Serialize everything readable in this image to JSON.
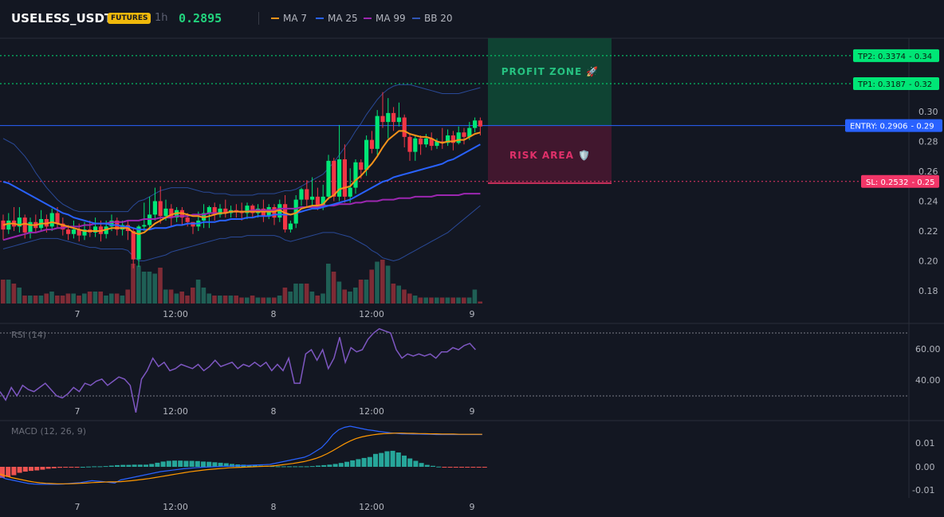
{
  "header": {
    "symbol": "USELESS_USDT",
    "badge": "FUTURES",
    "interval": "1h",
    "price": "0.2895",
    "legend": [
      {
        "name": "MA 7",
        "color": "#f7931a"
      },
      {
        "name": "MA 25",
        "color": "#2962ff"
      },
      {
        "name": "MA 99",
        "color": "#9c27b0"
      },
      {
        "name": "BB 20",
        "color": "#3056b5"
      }
    ]
  },
  "colors": {
    "up": "#00e676",
    "down": "#f23645",
    "vol_up": "#1f5f55",
    "vol_down": "#7e2b35",
    "rsi": "#7e57c2",
    "macd": "#2962ff",
    "signal": "#ff9800"
  },
  "levels": {
    "tp2": {
      "label": "TP2: 0.3374",
      "suffix": "- 0.34",
      "value": 0.3374,
      "color": "#00e676"
    },
    "tp1": {
      "label": "TP1: 0.3187",
      "suffix": "- 0.32",
      "value": 0.3187,
      "color": "#00e676"
    },
    "entry": {
      "label": "ENTRY: 0.2906",
      "suffix": "- 0.29",
      "value": 0.2906,
      "color": "#2962ff"
    },
    "sl": {
      "label": "SL: 0.2532",
      "suffix": "- 0.25",
      "value": 0.2532,
      "color": "#f23668"
    }
  },
  "zones": {
    "profit": "PROFIT ZONE 🚀",
    "risk": "RISK AREA 🛡️"
  },
  "x_labels": [
    "7",
    "12:00",
    "8",
    "12:00",
    "9"
  ],
  "price_ticks": [
    "0.30",
    "0.28",
    "0.26",
    "0.24",
    "0.22",
    "0.20",
    "0.18"
  ],
  "rsi": {
    "label": "RSI (14)",
    "ticks": [
      "60.00",
      "40.00"
    ]
  },
  "macd": {
    "label": "MACD (12, 26, 9)",
    "ticks": [
      "0.01",
      "0.00",
      "-0.01"
    ]
  },
  "chart_data": {
    "type": "candlestick",
    "ylim": [
      0.17,
      0.35
    ],
    "candles": [
      [
        0.227,
        0.221,
        0.231,
        0.214
      ],
      [
        0.221,
        0.227,
        0.232,
        0.218
      ],
      [
        0.227,
        0.223,
        0.236,
        0.22
      ],
      [
        0.223,
        0.229,
        0.236,
        0.219
      ],
      [
        0.229,
        0.219,
        0.231,
        0.215
      ],
      [
        0.219,
        0.226,
        0.229,
        0.215
      ],
      [
        0.226,
        0.222,
        0.231,
        0.219
      ],
      [
        0.222,
        0.228,
        0.234,
        0.22
      ],
      [
        0.228,
        0.223,
        0.231,
        0.219
      ],
      [
        0.223,
        0.232,
        0.235,
        0.22
      ],
      [
        0.232,
        0.225,
        0.236,
        0.222
      ],
      [
        0.225,
        0.221,
        0.229,
        0.217
      ],
      [
        0.221,
        0.218,
        0.224,
        0.214
      ],
      [
        0.218,
        0.221,
        0.227,
        0.215
      ],
      [
        0.221,
        0.217,
        0.225,
        0.213
      ],
      [
        0.217,
        0.221,
        0.226,
        0.214
      ],
      [
        0.221,
        0.219,
        0.227,
        0.216
      ],
      [
        0.219,
        0.223,
        0.229,
        0.216
      ],
      [
        0.223,
        0.218,
        0.227,
        0.213
      ],
      [
        0.218,
        0.223,
        0.227,
        0.215
      ],
      [
        0.223,
        0.227,
        0.231,
        0.22
      ],
      [
        0.227,
        0.221,
        0.229,
        0.217
      ],
      [
        0.221,
        0.224,
        0.227,
        0.217
      ],
      [
        0.224,
        0.22,
        0.227,
        0.214
      ],
      [
        0.22,
        0.201,
        0.222,
        0.195
      ],
      [
        0.201,
        0.223,
        0.224,
        0.196
      ],
      [
        0.223,
        0.224,
        0.239,
        0.22
      ],
      [
        0.224,
        0.231,
        0.243,
        0.221
      ],
      [
        0.231,
        0.24,
        0.249,
        0.227
      ],
      [
        0.24,
        0.23,
        0.25,
        0.225
      ],
      [
        0.23,
        0.235,
        0.241,
        0.227
      ],
      [
        0.235,
        0.229,
        0.238,
        0.223
      ],
      [
        0.229,
        0.234,
        0.236,
        0.226
      ],
      [
        0.234,
        0.229,
        0.236,
        0.224
      ],
      [
        0.229,
        0.226,
        0.232,
        0.223
      ],
      [
        0.226,
        0.223,
        0.226,
        0.218
      ],
      [
        0.223,
        0.227,
        0.233,
        0.22
      ],
      [
        0.227,
        0.232,
        0.238,
        0.222
      ],
      [
        0.232,
        0.236,
        0.237,
        0.222
      ],
      [
        0.236,
        0.231,
        0.239,
        0.227
      ],
      [
        0.231,
        0.235,
        0.238,
        0.229
      ],
      [
        0.235,
        0.232,
        0.241,
        0.229
      ],
      [
        0.232,
        0.234,
        0.237,
        0.229
      ],
      [
        0.234,
        0.233,
        0.238,
        0.229
      ],
      [
        0.233,
        0.232,
        0.239,
        0.227
      ],
      [
        0.232,
        0.237,
        0.239,
        0.228
      ],
      [
        0.237,
        0.232,
        0.238,
        0.229
      ],
      [
        0.232,
        0.235,
        0.238,
        0.229
      ],
      [
        0.235,
        0.23,
        0.241,
        0.226
      ],
      [
        0.23,
        0.236,
        0.238,
        0.228
      ],
      [
        0.236,
        0.229,
        0.238,
        0.224
      ],
      [
        0.229,
        0.238,
        0.241,
        0.226
      ],
      [
        0.238,
        0.221,
        0.244,
        0.219
      ],
      [
        0.221,
        0.225,
        0.227,
        0.219
      ],
      [
        0.225,
        0.241,
        0.244,
        0.222
      ],
      [
        0.241,
        0.248,
        0.249,
        0.237
      ],
      [
        0.248,
        0.241,
        0.254,
        0.236
      ],
      [
        0.241,
        0.243,
        0.256,
        0.237
      ],
      [
        0.243,
        0.237,
        0.249,
        0.234
      ],
      [
        0.237,
        0.243,
        0.251,
        0.234
      ],
      [
        0.243,
        0.267,
        0.271,
        0.241
      ],
      [
        0.267,
        0.243,
        0.269,
        0.24
      ],
      [
        0.243,
        0.268,
        0.291,
        0.24
      ],
      [
        0.268,
        0.243,
        0.278,
        0.239
      ],
      [
        0.243,
        0.249,
        0.262,
        0.239
      ],
      [
        0.249,
        0.266,
        0.268,
        0.245
      ],
      [
        0.266,
        0.261,
        0.268,
        0.255
      ],
      [
        0.261,
        0.281,
        0.284,
        0.257
      ],
      [
        0.281,
        0.275,
        0.287,
        0.272
      ],
      [
        0.275,
        0.297,
        0.301,
        0.271
      ],
      [
        0.297,
        0.293,
        0.313,
        0.289
      ],
      [
        0.293,
        0.299,
        0.309,
        0.282
      ],
      [
        0.299,
        0.293,
        0.303,
        0.287
      ],
      [
        0.293,
        0.296,
        0.306,
        0.29
      ],
      [
        0.296,
        0.283,
        0.298,
        0.276
      ],
      [
        0.283,
        0.273,
        0.285,
        0.267
      ],
      [
        0.273,
        0.282,
        0.284,
        0.267
      ],
      [
        0.282,
        0.278,
        0.284,
        0.271
      ],
      [
        0.278,
        0.282,
        0.285,
        0.276
      ],
      [
        0.282,
        0.277,
        0.286,
        0.274
      ],
      [
        0.277,
        0.28,
        0.282,
        0.275
      ],
      [
        0.28,
        0.279,
        0.289,
        0.275
      ],
      [
        0.279,
        0.284,
        0.288,
        0.277
      ],
      [
        0.284,
        0.279,
        0.287,
        0.274
      ],
      [
        0.279,
        0.286,
        0.29,
        0.278
      ],
      [
        0.286,
        0.283,
        0.289,
        0.278
      ],
      [
        0.283,
        0.289,
        0.293,
        0.281
      ],
      [
        0.289,
        0.294,
        0.296,
        0.286
      ],
      [
        0.294,
        0.29,
        0.296,
        0.284
      ]
    ],
    "ma7": [
      0.224,
      0.225,
      0.225,
      0.224,
      0.225,
      0.224,
      0.224,
      0.225,
      0.225,
      0.226,
      0.225,
      0.224,
      0.223,
      0.222,
      0.221,
      0.22,
      0.22,
      0.22,
      0.22,
      0.221,
      0.222,
      0.222,
      0.222,
      0.222,
      0.219,
      0.218,
      0.219,
      0.222,
      0.225,
      0.227,
      0.229,
      0.231,
      0.232,
      0.232,
      0.231,
      0.23,
      0.23,
      0.229,
      0.23,
      0.231,
      0.232,
      0.232,
      0.233,
      0.233,
      0.233,
      0.233,
      0.233,
      0.233,
      0.233,
      0.233,
      0.233,
      0.234,
      0.232,
      0.231,
      0.232,
      0.235,
      0.236,
      0.237,
      0.237,
      0.238,
      0.242,
      0.244,
      0.248,
      0.249,
      0.25,
      0.254,
      0.257,
      0.261,
      0.265,
      0.27,
      0.276,
      0.281,
      0.284,
      0.287,
      0.287,
      0.285,
      0.284,
      0.283,
      0.283,
      0.282,
      0.28,
      0.279,
      0.28,
      0.28,
      0.281,
      0.281,
      0.283,
      0.285,
      0.286
    ],
    "ma25": [
      0.253,
      0.252,
      0.25,
      0.248,
      0.246,
      0.244,
      0.242,
      0.24,
      0.238,
      0.236,
      0.234,
      0.232,
      0.231,
      0.229,
      0.228,
      0.227,
      0.226,
      0.225,
      0.225,
      0.225,
      0.224,
      0.224,
      0.223,
      0.223,
      0.222,
      0.221,
      0.221,
      0.221,
      0.222,
      0.222,
      0.222,
      0.223,
      0.224,
      0.224,
      0.225,
      0.225,
      0.225,
      0.226,
      0.226,
      0.226,
      0.227,
      0.227,
      0.228,
      0.228,
      0.228,
      0.229,
      0.229,
      0.23,
      0.23,
      0.23,
      0.231,
      0.231,
      0.231,
      0.231,
      0.232,
      0.233,
      0.234,
      0.235,
      0.235,
      0.236,
      0.237,
      0.238,
      0.239,
      0.24,
      0.241,
      0.243,
      0.245,
      0.247,
      0.249,
      0.251,
      0.253,
      0.254,
      0.256,
      0.257,
      0.258,
      0.259,
      0.26,
      0.261,
      0.262,
      0.263,
      0.264,
      0.265,
      0.267,
      0.268,
      0.27,
      0.272,
      0.274,
      0.276,
      0.278
    ],
    "ma99": [
      0.214,
      0.215,
      0.216,
      0.217,
      0.218,
      0.219,
      0.219,
      0.22,
      0.221,
      0.221,
      0.222,
      0.222,
      0.223,
      0.223,
      0.223,
      0.224,
      0.224,
      0.225,
      0.225,
      0.225,
      0.226,
      0.226,
      0.226,
      0.227,
      0.227,
      0.227,
      0.228,
      0.228,
      0.228,
      0.229,
      0.229,
      0.229,
      0.23,
      0.23,
      0.23,
      0.231,
      0.231,
      0.231,
      0.232,
      0.232,
      0.232,
      0.232,
      0.233,
      0.233,
      0.233,
      0.233,
      0.234,
      0.234,
      0.234,
      0.234,
      0.234,
      0.235,
      0.235,
      0.235,
      0.235,
      0.236,
      0.236,
      0.236,
      0.236,
      0.237,
      0.237,
      0.237,
      0.238,
      0.238,
      0.238,
      0.239,
      0.239,
      0.24,
      0.24,
      0.24,
      0.241,
      0.241,
      0.241,
      0.242,
      0.242,
      0.242,
      0.243,
      0.243,
      0.243,
      0.243,
      0.244,
      0.244,
      0.244,
      0.244,
      0.244,
      0.245,
      0.245,
      0.245,
      0.245
    ],
    "bb_upper": [
      0.282,
      0.28,
      0.278,
      0.274,
      0.27,
      0.265,
      0.259,
      0.254,
      0.249,
      0.245,
      0.241,
      0.238,
      0.236,
      0.234,
      0.233,
      0.233,
      0.233,
      0.233,
      0.233,
      0.233,
      0.233,
      0.233,
      0.233,
      0.233,
      0.237,
      0.24,
      0.241,
      0.243,
      0.245,
      0.247,
      0.248,
      0.249,
      0.249,
      0.249,
      0.249,
      0.248,
      0.247,
      0.246,
      0.246,
      0.245,
      0.245,
      0.245,
      0.244,
      0.244,
      0.244,
      0.244,
      0.244,
      0.245,
      0.245,
      0.245,
      0.245,
      0.246,
      0.247,
      0.247,
      0.248,
      0.25,
      0.252,
      0.254,
      0.256,
      0.258,
      0.262,
      0.266,
      0.271,
      0.276,
      0.281,
      0.287,
      0.292,
      0.298,
      0.303,
      0.308,
      0.312,
      0.315,
      0.317,
      0.318,
      0.318,
      0.318,
      0.317,
      0.316,
      0.315,
      0.314,
      0.313,
      0.312,
      0.312,
      0.312,
      0.312,
      0.313,
      0.314,
      0.315,
      0.316
    ],
    "bb_lower": [
      0.208,
      0.209,
      0.21,
      0.211,
      0.212,
      0.213,
      0.214,
      0.215,
      0.215,
      0.215,
      0.215,
      0.214,
      0.213,
      0.212,
      0.211,
      0.21,
      0.209,
      0.209,
      0.208,
      0.208,
      0.208,
      0.208,
      0.208,
      0.207,
      0.203,
      0.2,
      0.2,
      0.201,
      0.202,
      0.203,
      0.204,
      0.206,
      0.207,
      0.208,
      0.209,
      0.21,
      0.211,
      0.212,
      0.213,
      0.214,
      0.215,
      0.215,
      0.216,
      0.216,
      0.216,
      0.217,
      0.217,
      0.217,
      0.217,
      0.217,
      0.217,
      0.216,
      0.214,
      0.213,
      0.214,
      0.215,
      0.216,
      0.217,
      0.218,
      0.219,
      0.219,
      0.219,
      0.218,
      0.217,
      0.216,
      0.214,
      0.212,
      0.21,
      0.207,
      0.205,
      0.202,
      0.201,
      0.2,
      0.201,
      0.203,
      0.205,
      0.207,
      0.209,
      0.211,
      0.213,
      0.215,
      0.217,
      0.219,
      0.222,
      0.225,
      0.228,
      0.231,
      0.234,
      0.237
    ],
    "volume": [
      0.6,
      0.6,
      0.5,
      0.4,
      0.2,
      0.2,
      0.2,
      0.2,
      0.25,
      0.3,
      0.2,
      0.2,
      0.25,
      0.25,
      0.2,
      0.25,
      0.3,
      0.3,
      0.3,
      0.2,
      0.25,
      0.25,
      0.2,
      0.35,
      1.0,
      0.95,
      0.8,
      0.8,
      0.75,
      0.9,
      0.35,
      0.35,
      0.25,
      0.3,
      0.2,
      0.4,
      0.6,
      0.4,
      0.25,
      0.2,
      0.2,
      0.2,
      0.2,
      0.2,
      0.15,
      0.15,
      0.2,
      0.15,
      0.15,
      0.15,
      0.15,
      0.2,
      0.4,
      0.3,
      0.5,
      0.5,
      0.5,
      0.3,
      0.2,
      0.25,
      1.0,
      0.8,
      0.55,
      0.35,
      0.3,
      0.4,
      0.6,
      0.6,
      0.85,
      1.05,
      1.1,
      0.95,
      0.5,
      0.45,
      0.35,
      0.25,
      0.2,
      0.15,
      0.15,
      0.15,
      0.15,
      0.15,
      0.15,
      0.15,
      0.15,
      0.15,
      0.15,
      0.35,
      0.05
    ],
    "rsi": [
      42,
      38,
      44,
      40,
      45,
      43,
      42,
      44,
      46,
      43,
      40,
      39,
      41,
      44,
      42,
      46,
      45,
      47,
      48,
      45,
      47,
      49,
      48,
      45,
      32,
      48,
      52,
      58,
      54,
      56,
      52,
      53,
      55,
      54,
      53,
      55,
      52,
      54,
      57,
      54,
      55,
      56,
      53,
      55,
      54,
      56,
      54,
      56,
      52,
      55,
      52,
      58,
      46,
      46,
      60,
      62,
      57,
      62,
      53,
      58,
      68,
      56,
      63,
      61,
      62,
      67,
      70,
      72,
      71,
      70,
      62,
      58,
      60,
      59,
      60,
      59,
      60,
      58,
      61,
      61,
      63,
      62,
      64,
      65,
      62
    ],
    "macd": [
      -0.004,
      -0.005,
      -0.0055,
      -0.006,
      -0.0065,
      -0.007,
      -0.0072,
      -0.0073,
      -0.0073,
      -0.0073,
      -0.0073,
      -0.0072,
      -0.007,
      -0.0068,
      -0.0066,
      -0.0062,
      -0.0058,
      -0.006,
      -0.0062,
      -0.0065,
      -0.0068,
      -0.0055,
      -0.005,
      -0.0045,
      -0.004,
      -0.0035,
      -0.003,
      -0.0025,
      -0.002,
      -0.0017,
      -0.0014,
      -0.0011,
      -0.0008,
      -0.0006,
      -0.0004,
      -0.0002,
      -0.0001,
      0.0,
      0.0001,
      0.0002,
      0.0003,
      0.0004,
      0.0005,
      0.0006,
      0.0007,
      0.0008,
      0.0009,
      0.001,
      0.0015,
      0.002,
      0.0025,
      0.003,
      0.0035,
      0.004,
      0.005,
      0.0065,
      0.008,
      0.0105,
      0.0135,
      0.0155,
      0.0165,
      0.017,
      0.0165,
      0.016,
      0.0155,
      0.0152,
      0.0148,
      0.0145,
      0.0142,
      0.014,
      0.0138,
      0.0138,
      0.0137,
      0.0137,
      0.0136,
      0.0136,
      0.0135,
      0.0135,
      0.0135,
      0.0135,
      0.0135,
      0.0135,
      0.0135,
      0.0135,
      0.0135
    ],
    "signal": [
      -0.003,
      -0.0038,
      -0.0045,
      -0.005,
      -0.0055,
      -0.006,
      -0.0064,
      -0.0067,
      -0.0069,
      -0.007,
      -0.0071,
      -0.0071,
      -0.0071,
      -0.007,
      -0.0069,
      -0.0068,
      -0.0066,
      -0.0065,
      -0.0064,
      -0.0063,
      -0.0063,
      -0.0062,
      -0.006,
      -0.0058,
      -0.0055,
      -0.0052,
      -0.0049,
      -0.0045,
      -0.0041,
      -0.0037,
      -0.0033,
      -0.0029,
      -0.0025,
      -0.0021,
      -0.0018,
      -0.0015,
      -0.0012,
      -0.001,
      -0.0008,
      -0.0006,
      -0.0004,
      -0.0003,
      -0.0002,
      -0.0001,
      0.0,
      0.0001,
      0.0002,
      0.0003,
      0.0005,
      0.0008,
      0.0011,
      0.0014,
      0.0018,
      0.0022,
      0.0028,
      0.0035,
      0.0044,
      0.0055,
      0.0068,
      0.0082,
      0.0096,
      0.0108,
      0.0118,
      0.0125,
      0.013,
      0.0134,
      0.0137,
      0.0139,
      0.014,
      0.0141,
      0.0141,
      0.014,
      0.014,
      0.0139,
      0.0139,
      0.0138,
      0.0138,
      0.0137,
      0.0137,
      0.0137,
      0.0136,
      0.0136,
      0.0136,
      0.0136,
      0.0136
    ],
    "histogram": [
      -0.0046,
      -0.0042,
      -0.0035,
      -0.0025,
      -0.002,
      -0.0017,
      -0.0015,
      -0.0012,
      -0.0008,
      -0.0006,
      -0.0004,
      -0.0003,
      -0.0002,
      -0.0001,
      0.0,
      0.0001,
      0.0002,
      0.0002,
      0.0003,
      0.0005,
      0.0007,
      0.0008,
      0.0008,
      0.0009,
      0.0009,
      0.0009,
      0.0012,
      0.0017,
      0.0022,
      0.0025,
      0.0026,
      0.0026,
      0.0025,
      0.0025,
      0.0024,
      0.0022,
      0.0021,
      0.0019,
      0.0017,
      0.0015,
      0.0012,
      0.001,
      0.0009,
      0.0008,
      0.0006,
      0.0005,
      0.0004,
      0.0003,
      0.0002,
      0.0002,
      0.0002,
      0.0002,
      0.0002,
      0.0002,
      0.0003,
      0.0005,
      0.0007,
      0.0009,
      0.0012,
      0.0016,
      0.0021,
      0.0027,
      0.0032,
      0.0037,
      0.0041,
      0.0054,
      0.0058,
      0.0065,
      0.0067,
      0.006,
      0.0047,
      0.0035,
      0.0025,
      0.0016,
      0.0008,
      0.0004,
      0.0001,
      -0.0001,
      -0.0002,
      -0.0003,
      -0.0003,
      -0.0003,
      -0.0003,
      -0.0003,
      -0.0003
    ]
  }
}
